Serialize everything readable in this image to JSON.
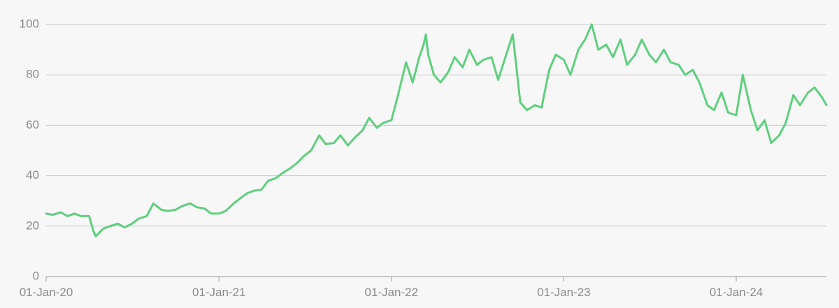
{
  "chart_data": {
    "type": "line",
    "title": "",
    "xlabel": "",
    "ylabel": "",
    "ylim": [
      0,
      100
    ],
    "xlim": [
      "2020-01-01",
      "2024-07-10"
    ],
    "grid": "horizontal",
    "legend": "none",
    "y_ticks": [
      "0",
      "20",
      "40",
      "60",
      "80",
      "100"
    ],
    "x_ticks": [
      {
        "date": "2020-01-01",
        "label": "01-Jan-20"
      },
      {
        "date": "2021-01-01",
        "label": "01-Jan-21"
      },
      {
        "date": "2022-01-01",
        "label": "01-Jan-22"
      },
      {
        "date": "2023-01-01",
        "label": "01-Jan-23"
      },
      {
        "date": "2024-01-01",
        "label": "01-Jan-24"
      }
    ],
    "colors": {
      "line": "#5fcf7f",
      "grid": "#c8c8c8",
      "axis": "#9a9a9a",
      "labels": "#8a8a8a",
      "background": "#f7f7f7"
    },
    "series": [
      {
        "x": [
          "2020-01-01",
          "2020-01-15",
          "2020-02-01",
          "2020-02-15",
          "2020-03-01",
          "2020-03-15",
          "2020-04-01",
          "2020-04-10",
          "2020-04-15",
          "2020-05-01",
          "2020-05-15",
          "2020-06-01",
          "2020-06-15",
          "2020-07-01",
          "2020-07-15",
          "2020-08-01",
          "2020-08-15",
          "2020-09-01",
          "2020-09-15",
          "2020-10-01",
          "2020-10-15",
          "2020-11-01",
          "2020-11-15",
          "2020-12-01",
          "2020-12-15",
          "2021-01-01",
          "2021-01-15",
          "2021-02-01",
          "2021-02-15",
          "2021-03-01",
          "2021-03-15",
          "2021-04-01",
          "2021-04-15",
          "2021-05-01",
          "2021-05-15",
          "2021-06-01",
          "2021-06-15",
          "2021-07-01",
          "2021-07-15",
          "2021-08-01",
          "2021-08-15",
          "2021-09-01",
          "2021-09-15",
          "2021-10-01",
          "2021-10-15",
          "2021-11-01",
          "2021-11-15",
          "2021-12-01",
          "2021-12-15",
          "2022-01-01",
          "2022-01-15",
          "2022-02-01",
          "2022-02-15",
          "2022-03-01",
          "2022-03-10",
          "2022-03-15",
          "2022-03-20",
          "2022-04-01",
          "2022-04-15",
          "2022-05-01",
          "2022-05-15",
          "2022-06-01",
          "2022-06-15",
          "2022-07-01",
          "2022-07-15",
          "2022-08-01",
          "2022-08-15",
          "2022-09-01",
          "2022-09-15",
          "2022-10-01",
          "2022-10-15",
          "2022-11-01",
          "2022-11-15",
          "2022-12-01",
          "2022-12-15",
          "2023-01-01",
          "2023-01-15",
          "2023-02-01",
          "2023-02-15",
          "2023-03-01",
          "2023-03-15",
          "2023-04-01",
          "2023-04-15",
          "2023-05-01",
          "2023-05-15",
          "2023-06-01",
          "2023-06-15",
          "2023-07-01",
          "2023-07-15",
          "2023-08-01",
          "2023-08-15",
          "2023-09-01",
          "2023-09-15",
          "2023-10-01",
          "2023-10-15",
          "2023-11-01",
          "2023-11-15",
          "2023-12-01",
          "2023-12-15",
          "2024-01-01",
          "2024-01-15",
          "2024-02-01",
          "2024-02-15",
          "2024-03-01",
          "2024-03-15",
          "2024-04-01",
          "2024-04-15",
          "2024-05-01",
          "2024-05-15",
          "2024-06-01",
          "2024-06-15",
          "2024-07-01",
          "2024-07-10"
        ],
        "y": [
          25,
          24.5,
          25.5,
          24,
          25,
          24,
          24,
          18,
          16,
          19,
          20,
          21,
          19.5,
          21,
          23,
          24,
          29,
          26.5,
          26,
          26.5,
          28,
          29,
          27.5,
          27,
          25,
          25,
          26,
          29,
          31,
          33,
          34,
          34.5,
          38,
          39,
          41,
          43,
          45,
          48,
          50,
          56,
          52.5,
          53,
          56,
          52,
          55,
          58,
          63,
          59,
          61,
          62,
          72,
          85,
          77,
          87,
          92,
          96,
          88,
          80,
          77,
          81,
          87,
          83,
          90,
          84,
          86,
          87,
          78,
          88,
          96,
          69,
          66,
          68,
          67,
          82,
          88,
          86,
          80,
          90,
          94,
          100,
          90,
          92,
          87,
          94,
          84,
          88,
          94,
          88,
          85,
          90,
          85,
          84,
          80,
          82,
          77,
          68,
          66,
          73,
          65,
          64,
          80,
          66,
          58,
          62,
          53,
          56,
          61,
          72,
          68,
          73,
          75,
          71,
          68
        ]
      }
    ]
  }
}
